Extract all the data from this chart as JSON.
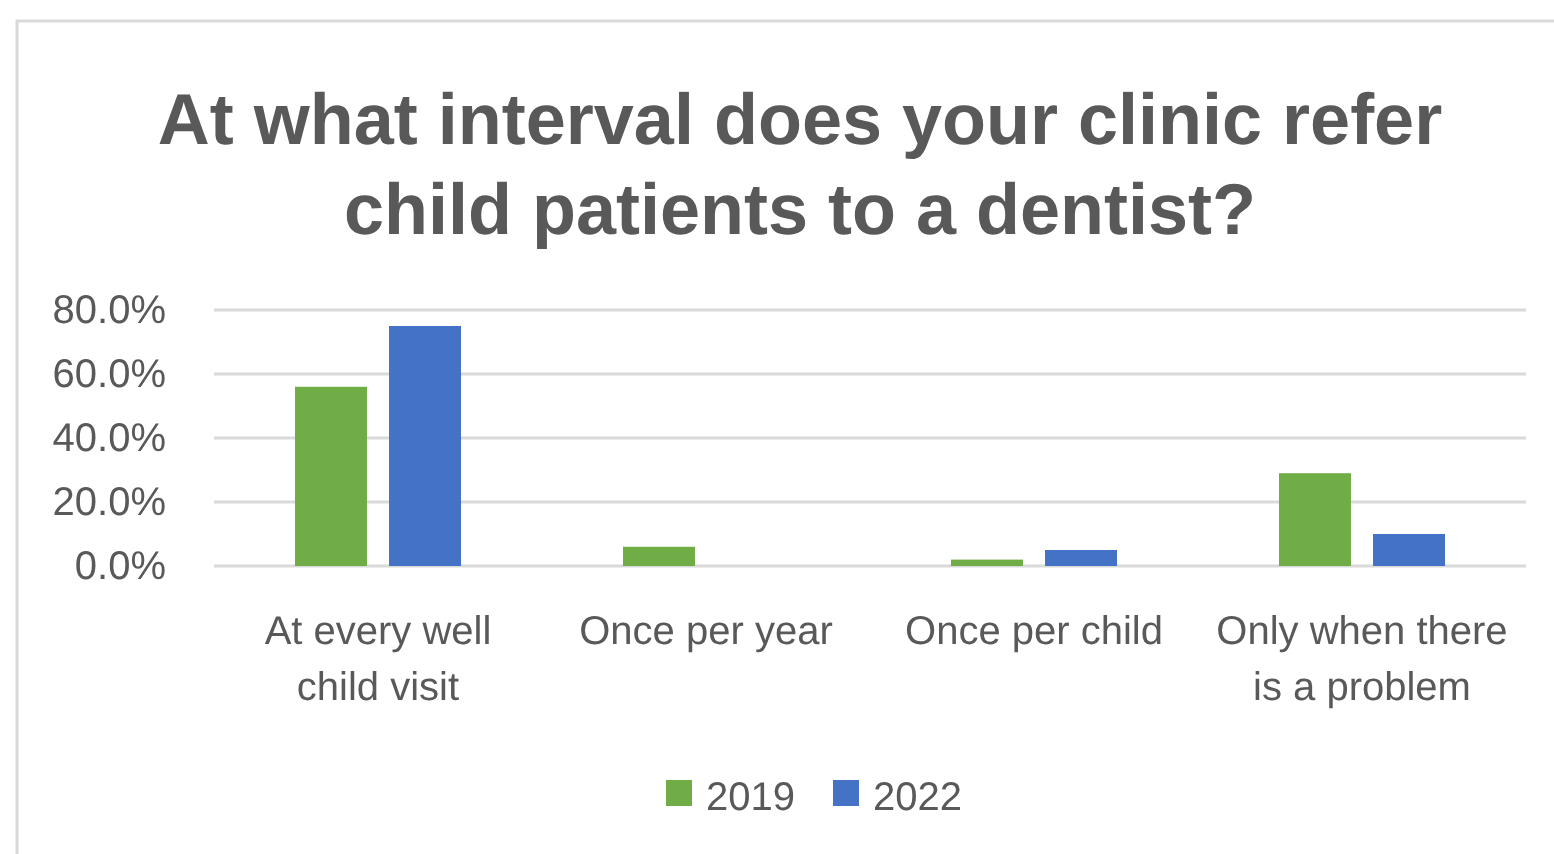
{
  "chart_data": {
    "type": "bar",
    "title": "At what interval does your clinic refer child patients to a dentist?",
    "categories": [
      "At every well child visit",
      "Once per year",
      "Once per child",
      "Only when there is a problem"
    ],
    "series": [
      {
        "name": "2019",
        "color": "#70ad47",
        "values": [
          56,
          6,
          2,
          29
        ]
      },
      {
        "name": "2022",
        "color": "#4472c4",
        "values": [
          75,
          0,
          5,
          10
        ]
      }
    ],
    "ylim": [
      0,
      80
    ],
    "yticks": [
      {
        "value": 0,
        "label": "0.0%"
      },
      {
        "value": 20,
        "label": "20.0%"
      },
      {
        "value": 40,
        "label": "40.0%"
      },
      {
        "value": 60,
        "label": "60.0%"
      },
      {
        "value": 80,
        "label": "80.0%"
      }
    ],
    "grid": "y",
    "legend": "bottom"
  }
}
